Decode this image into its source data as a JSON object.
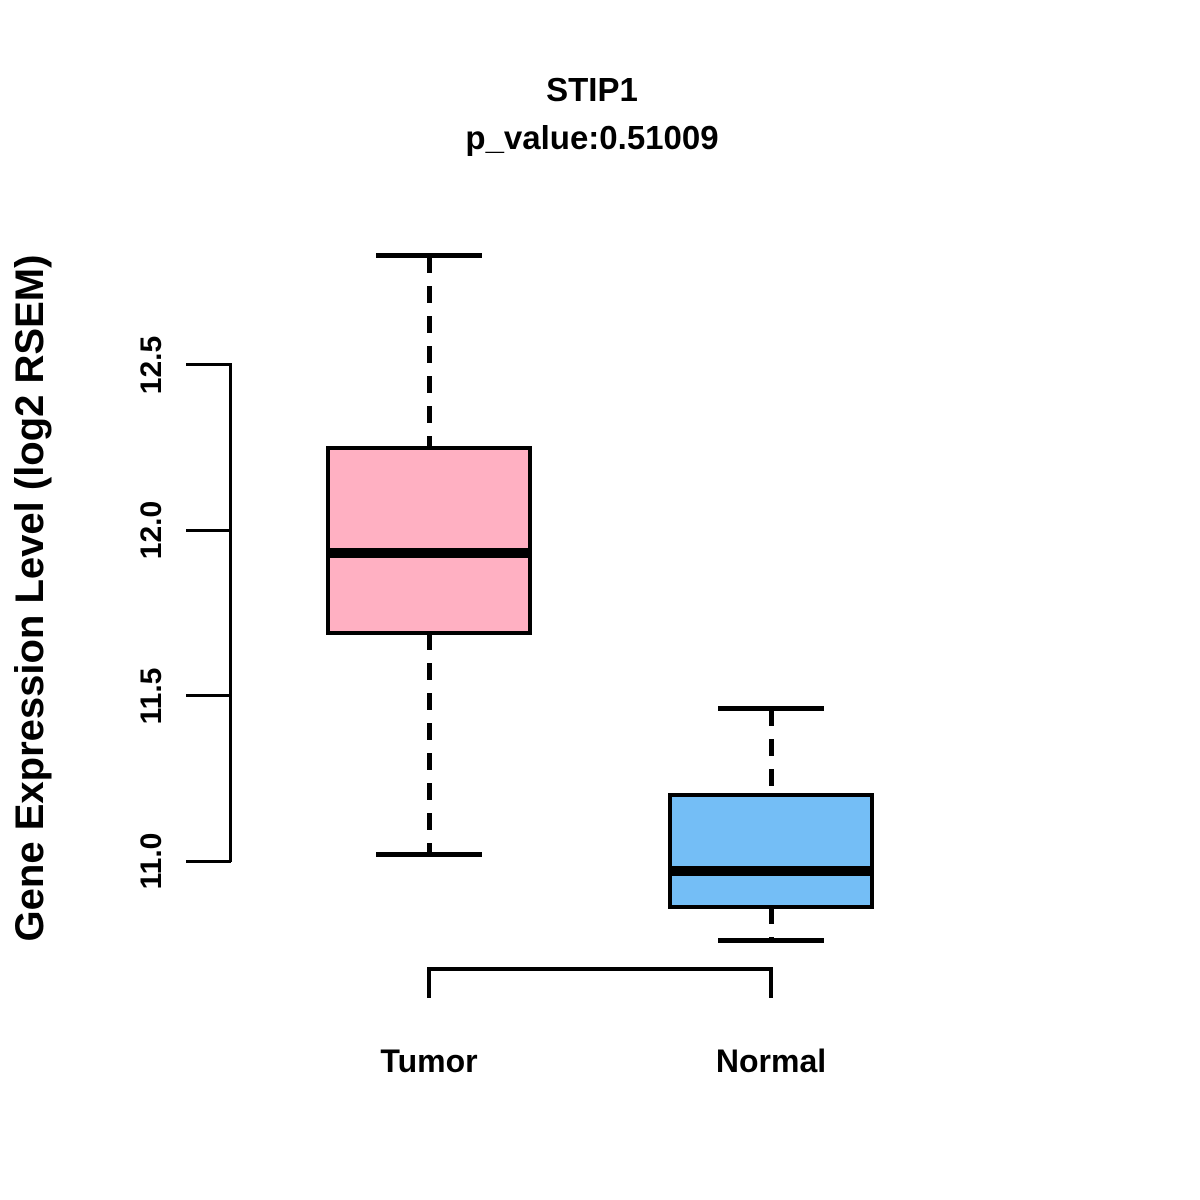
{
  "title": {
    "gene": "STIP1",
    "pvalue_line": "p_value:0.51009"
  },
  "y_axis": {
    "label": "Gene Expression Level (log2 RSEM)",
    "ticks": [
      "11.0",
      "11.5",
      "12.0",
      "12.5"
    ]
  },
  "x_axis": {
    "labels": [
      "Tumor",
      "Normal"
    ]
  },
  "chart_data": {
    "type": "boxplot",
    "title": "STIP1",
    "subtitle": "p_value:0.51009",
    "ylabel": "Gene Expression Level (log2 RSEM)",
    "ylim": [
      10.6,
      12.95
    ],
    "yticks": [
      11.0,
      11.5,
      12.0,
      12.5
    ],
    "grid": false,
    "categories": [
      "Tumor",
      "Normal"
    ],
    "groups": [
      {
        "label": "Tumor",
        "color": "#FFB0C2",
        "whisker_low": 11.02,
        "q1": 11.69,
        "median": 11.93,
        "q3": 12.25,
        "whisker_high": 12.83
      },
      {
        "label": "Normal",
        "color": "#74BEF6",
        "whisker_low": 10.76,
        "q1": 10.86,
        "median": 10.97,
        "q3": 11.2,
        "whisker_high": 11.46
      }
    ],
    "colors": {
      "tumor_fill": "#FFB0C2",
      "normal_fill": "#74BEF6",
      "line": "#000000",
      "background": "#FFFFFF"
    }
  }
}
